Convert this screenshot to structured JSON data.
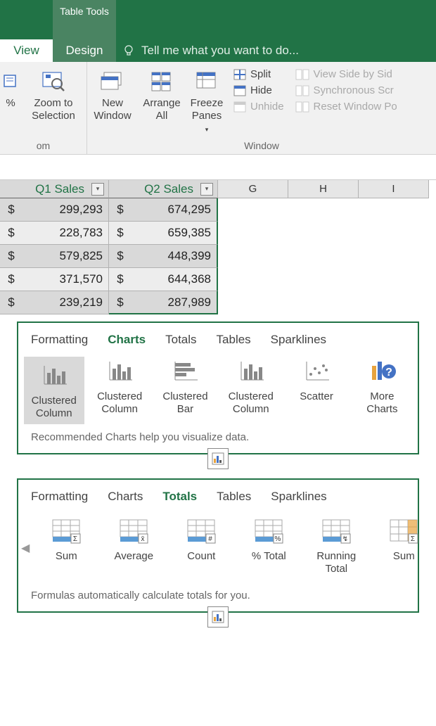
{
  "title": {
    "tableTools": "Table Tools",
    "viewTab": "View",
    "designTab": "Design",
    "tellMe": "Tell me what you want to do..."
  },
  "ribbon": {
    "zoom": {
      "pct": "%",
      "zoomToSelection": "Zoom to\nSelection",
      "groupLabel": "om"
    },
    "window": {
      "newWindow": "New\nWindow",
      "arrangeAll": "Arrange\nAll",
      "freezePanes": "Freeze\nPanes",
      "split": "Split",
      "hide": "Hide",
      "unhide": "Unhide",
      "viewSide": "View Side by Sid",
      "syncScroll": "Synchronous Scr",
      "resetPos": "Reset Window Po",
      "groupLabel": "Window"
    }
  },
  "table": {
    "headers": [
      "Q1 Sales",
      "Q2 Sales"
    ],
    "plainCols": [
      "G",
      "H",
      "I"
    ],
    "colWidths": {
      "data": 155,
      "plain": 80
    },
    "rows": [
      {
        "q1": "299,293",
        "q2": "674,295",
        "band": "a"
      },
      {
        "q1": "228,783",
        "q2": "659,385",
        "band": "b"
      },
      {
        "q1": "579,825",
        "q2": "448,399",
        "band": "a"
      },
      {
        "q1": "371,570",
        "q2": "644,368",
        "band": "b"
      },
      {
        "q1": "239,219",
        "q2": "287,989",
        "band": "a"
      }
    ]
  },
  "quickAnalysis": {
    "tabs": [
      "Formatting",
      "Charts",
      "Totals",
      "Tables",
      "Sparklines"
    ],
    "charts": {
      "selectedTab": "Charts",
      "options": [
        {
          "name": "Clustered\nColumn",
          "icon": "col-chart",
          "selected": true
        },
        {
          "name": "Clustered\nColumn",
          "icon": "col-chart"
        },
        {
          "name": "Clustered\nBar",
          "icon": "bar-chart"
        },
        {
          "name": "Clustered\nColumn",
          "icon": "col-chart"
        },
        {
          "name": "Scatter",
          "icon": "scatter"
        },
        {
          "name": "More\nCharts",
          "icon": "more-charts"
        }
      ],
      "hint": "Recommended Charts help you visualize data."
    },
    "totals": {
      "selectedTab": "Totals",
      "options": [
        {
          "name": "Sum",
          "icon": "sum"
        },
        {
          "name": "Average",
          "icon": "average"
        },
        {
          "name": "Count",
          "icon": "count"
        },
        {
          "name": "% Total",
          "icon": "pct-total"
        },
        {
          "name": "Running\nTotal",
          "icon": "running"
        },
        {
          "name": "Sum",
          "icon": "sum-col"
        }
      ],
      "hint": "Formulas automatically calculate totals for you."
    }
  },
  "colors": {
    "green": "#217346",
    "greenLight": "#4a8462",
    "ribbon": "#f1f1f1",
    "band1": "#d9d9d9",
    "band2": "#ededed"
  }
}
